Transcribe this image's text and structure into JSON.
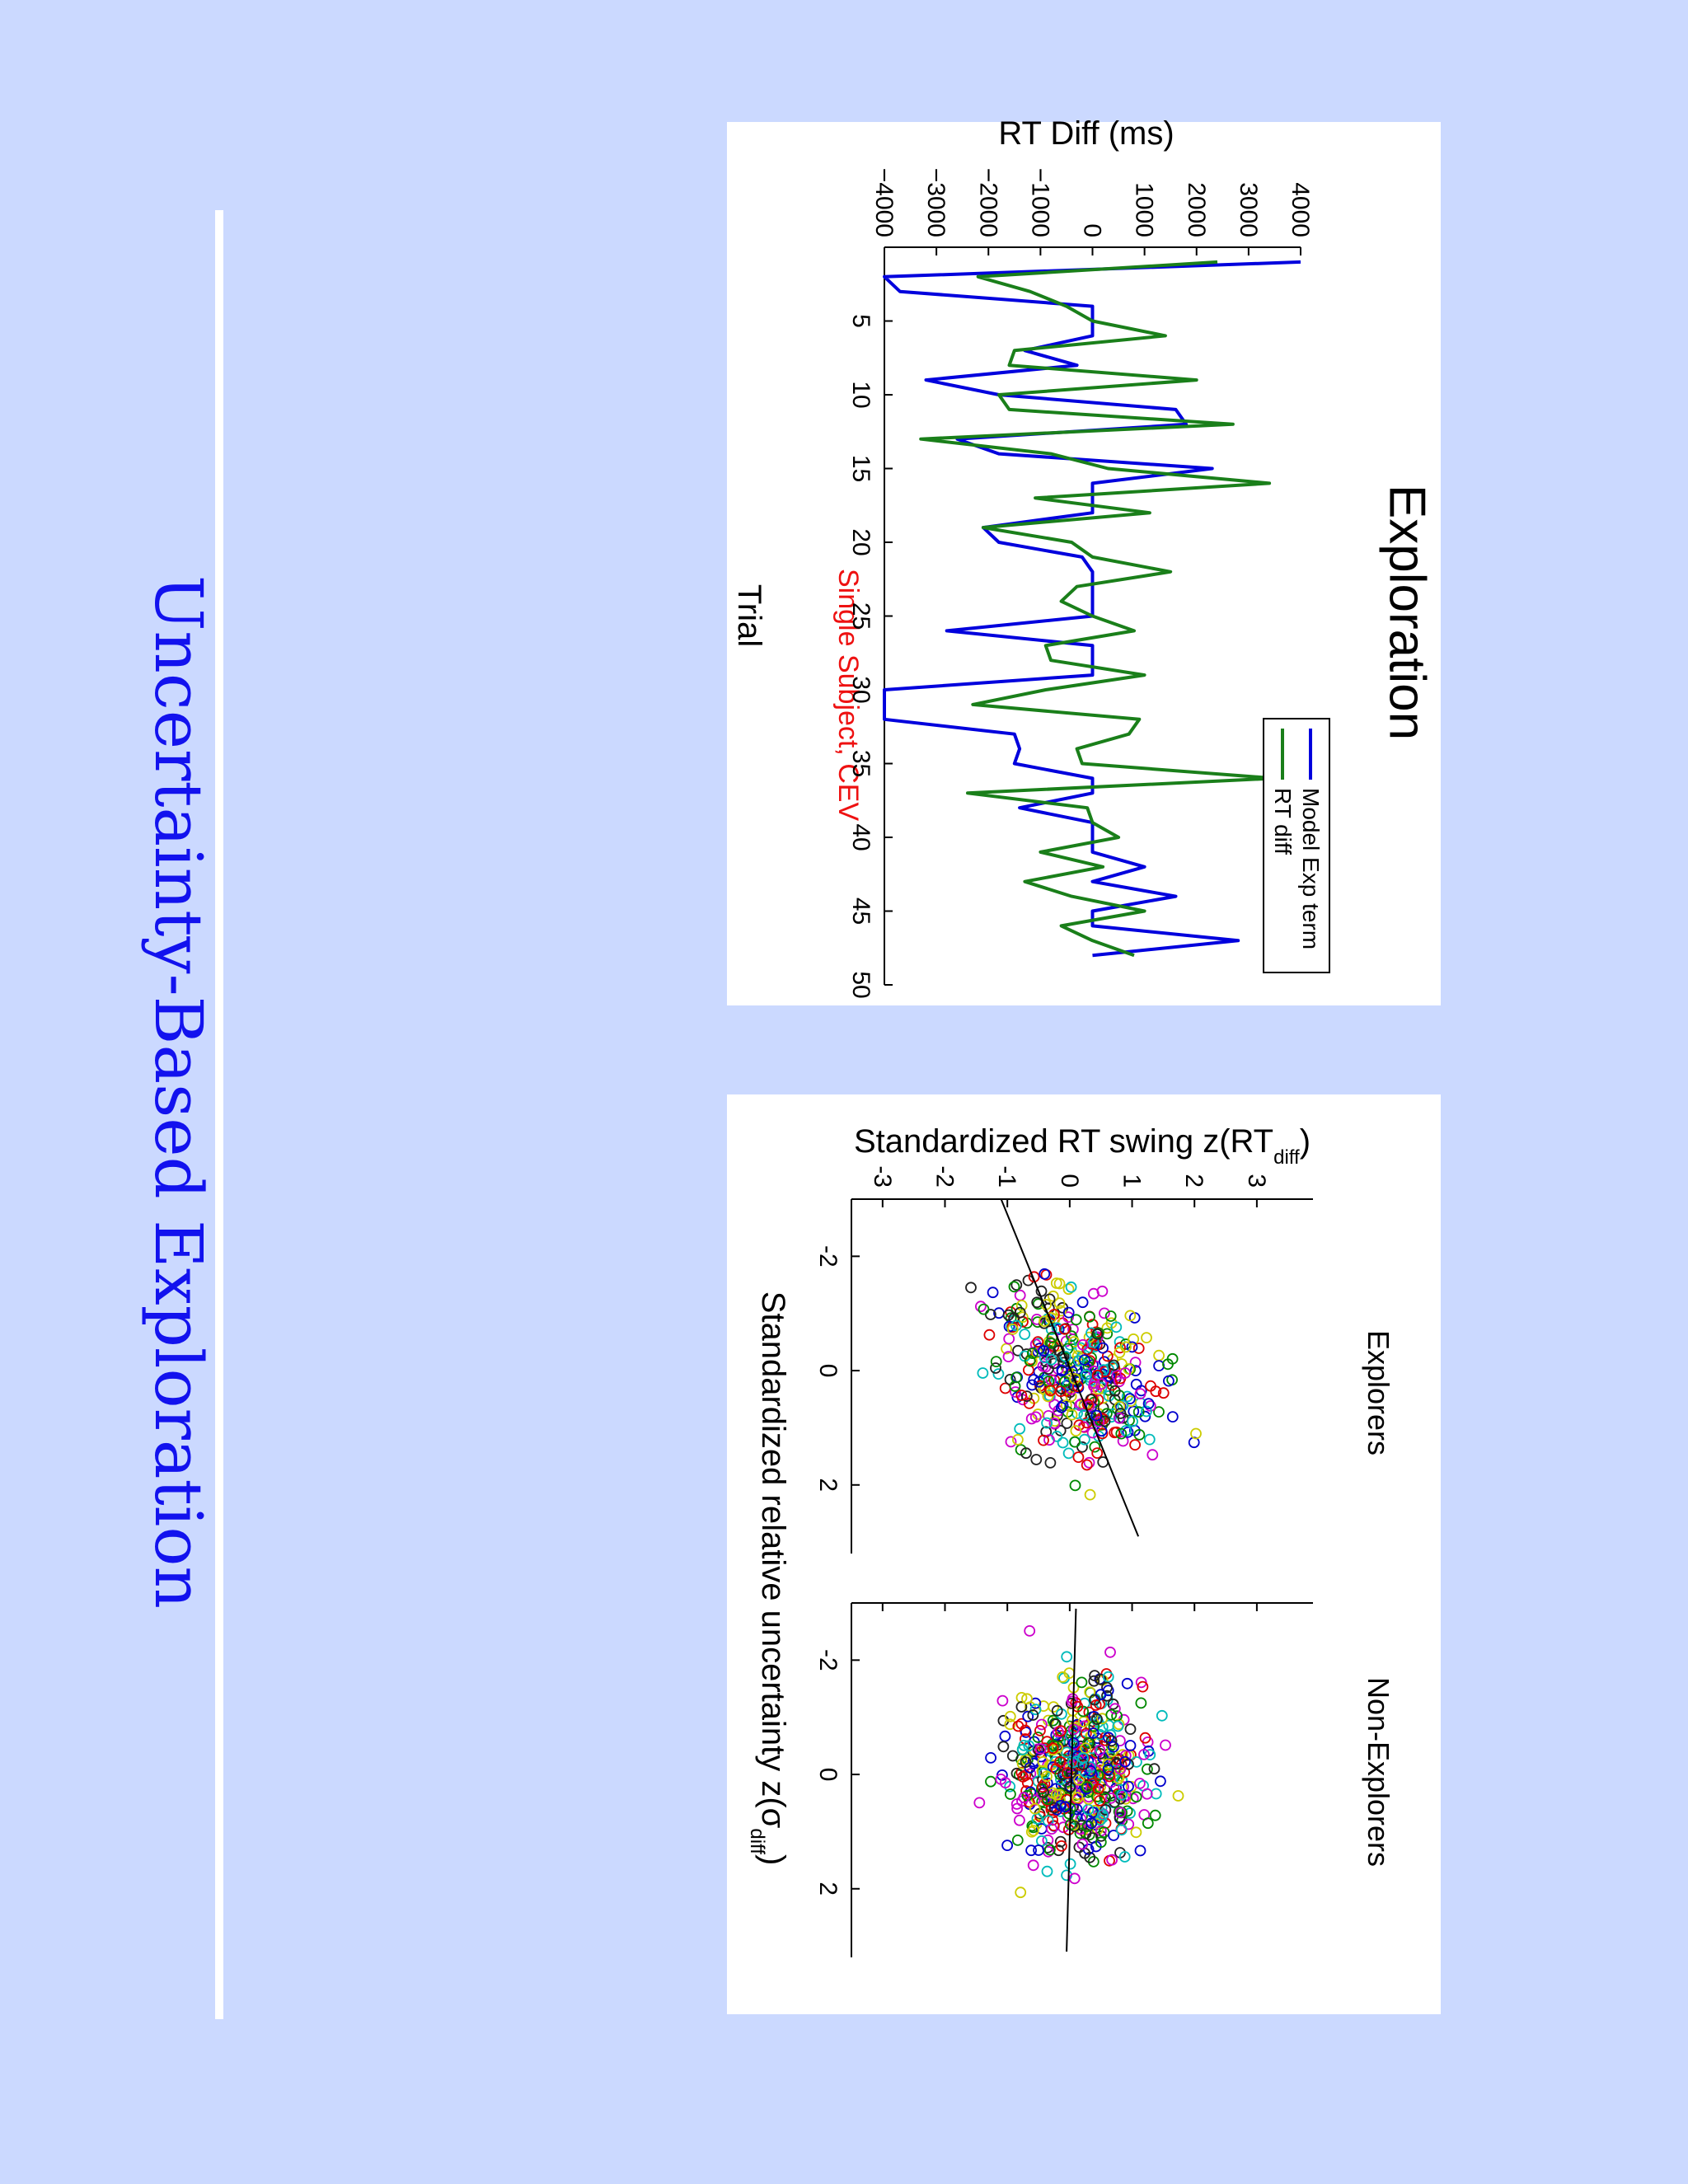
{
  "slide": {
    "title": "Uncertainty-Based Exploration"
  },
  "chart_data": [
    {
      "type": "line",
      "title": "Exploration",
      "xlabel": "Trial",
      "ylabel": "RT Diff (ms)",
      "xlim": [
        0,
        50
      ],
      "ylim": [
        -4000,
        4000
      ],
      "xticks": [
        5,
        10,
        15,
        20,
        25,
        30,
        35,
        40,
        45,
        50
      ],
      "yticks": [
        -4000,
        -3000,
        -2000,
        -1000,
        0,
        1000,
        2000,
        3000,
        4000
      ],
      "legend_position": "top-right",
      "annotation": "Single Subject, CEV",
      "series": [
        {
          "name": "Model Exp term",
          "color": "#0000dd",
          "x": [
            1,
            2,
            3,
            4,
            5,
            6,
            7,
            8,
            9,
            10,
            11,
            12,
            13,
            14,
            15,
            16,
            17,
            18,
            19,
            20,
            21,
            22,
            23,
            24,
            25,
            26,
            27,
            28,
            29,
            30,
            31,
            32,
            33,
            34,
            35,
            36,
            37,
            38,
            39,
            40,
            41,
            42,
            43,
            44,
            45,
            46,
            47,
            48
          ],
          "y": [
            4000,
            -4000,
            -3700,
            0,
            0,
            0,
            -1300,
            -300,
            -3200,
            -1800,
            1600,
            1800,
            -2600,
            -1800,
            2300,
            0,
            0,
            0,
            -2100,
            -1800,
            -200,
            0,
            0,
            0,
            0,
            -2800,
            0,
            0,
            0,
            -4000,
            -4000,
            -4000,
            -1500,
            -1400,
            -1500,
            0,
            0,
            -1400,
            0,
            0,
            0,
            1000,
            0,
            1600,
            0,
            0,
            2800,
            0
          ]
        },
        {
          "name": "RT diff",
          "color": "#1a7f1a",
          "x": [
            1,
            2,
            3,
            4,
            5,
            6,
            7,
            8,
            9,
            10,
            11,
            12,
            13,
            14,
            15,
            16,
            17,
            18,
            19,
            20,
            21,
            22,
            23,
            24,
            25,
            26,
            27,
            28,
            29,
            30,
            31,
            32,
            33,
            34,
            35,
            36,
            37,
            38,
            39,
            40,
            41,
            42,
            43,
            44,
            45,
            46,
            47,
            48
          ],
          "y": [
            2400,
            -2200,
            -1200,
            -500,
            0,
            1400,
            -1500,
            -1600,
            2000,
            -1800,
            -1600,
            2700,
            -3300,
            -800,
            300,
            3400,
            -1100,
            1100,
            -2100,
            -400,
            0,
            1500,
            -300,
            -600,
            0,
            800,
            -900,
            -800,
            1000,
            -900,
            -2300,
            900,
            700,
            -300,
            -200,
            3500,
            -2400,
            -100,
            0,
            500,
            -1000,
            200,
            -1300,
            -400,
            1000,
            -600,
            0,
            800
          ]
        }
      ]
    },
    {
      "type": "scatter",
      "panels": [
        "Explorers",
        "Non-Explorers"
      ],
      "xlabel": "Standardized relative uncertainty z(σ",
      "xlabel_sub": "diff",
      "xlabel_end": ")",
      "ylabel": "Standardized RT swing z(RT",
      "ylabel_sub": "diff",
      "ylabel_end": ")",
      "xlim": [
        -3,
        3.2
      ],
      "ylim": [
        -3.5,
        3.9
      ],
      "xticks": [
        -2,
        0,
        2
      ],
      "yticks": [
        -3,
        -2,
        -1,
        0,
        1,
        2,
        3
      ],
      "point_colors": [
        "#0000cc",
        "#008800",
        "#dd0000",
        "#00bbbb",
        "#cc00cc",
        "#cccc00",
        "#222222"
      ],
      "explorers_fit": {
        "x": [
          -3,
          2.9
        ],
        "y": [
          -1.1,
          1.1
        ]
      },
      "non_explorers_fit": {
        "x": [
          -2.9,
          3.1
        ],
        "y": [
          0.1,
          -0.05
        ]
      }
    }
  ]
}
